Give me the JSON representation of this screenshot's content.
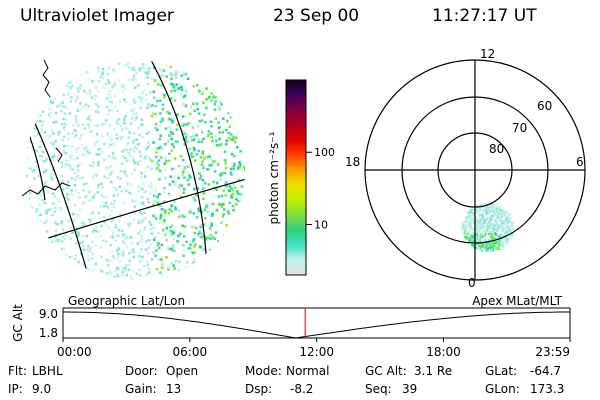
{
  "header": {
    "instrument": "Ultraviolet Imager",
    "date": "23 Sep 00",
    "time": "11:27:17 UT"
  },
  "colorbar": {
    "label": "photon cm⁻²s⁻¹",
    "ticks": [
      "100",
      "10"
    ],
    "tick_values": [
      100,
      10
    ],
    "range": [
      2,
      1000
    ],
    "scale": "log",
    "colors": [
      "#e0e0e0",
      "#c0f0f0",
      "#40e0c0",
      "#30d080",
      "#80e040",
      "#c0f000",
      "#f0e000",
      "#ffa000",
      "#ff4000",
      "#e00000",
      "#b00020",
      "#800040",
      "#400060",
      "#100020"
    ]
  },
  "polar": {
    "mlt_labels": {
      "top": "12",
      "left": "18",
      "right": "6",
      "bottom": "0"
    },
    "lat_labels": [
      "60",
      "70",
      "80"
    ],
    "lat_values": [
      60,
      70,
      80
    ]
  },
  "orbit": {
    "left_title": "Geographic Lat/Lon",
    "right_title": "Apex MLat/MLT",
    "y_axis_label": "GC Alt",
    "y_ticks": [
      "9.0",
      "1.8"
    ],
    "y_tick_values": [
      9.0,
      1.8
    ],
    "x_ticks": [
      "00:00",
      "06:00",
      "12:00",
      "18:00",
      "23:59"
    ],
    "current_time": "11:27:17",
    "marker_color": "#e00000"
  },
  "status": {
    "flt_label": "Flt:",
    "flt_value": "LBHL",
    "ip_label": "IP:",
    "ip_value": "9.0",
    "door_label": "Door:",
    "door_value": "Open",
    "gain_label": "Gain:",
    "gain_value": "13",
    "mode_label": "Mode:",
    "mode_value": "Normal",
    "dsp_label": "Dsp:",
    "dsp_value": "-8.2",
    "gcalt_label": "GC Alt:",
    "gcalt_value": "3.1 Re",
    "seq_label": "Seq:",
    "seq_value": "39",
    "glat_label": "GLat:",
    "glat_value": "-64.7",
    "glon_label": "GLon:",
    "glon_value": "173.3"
  }
}
